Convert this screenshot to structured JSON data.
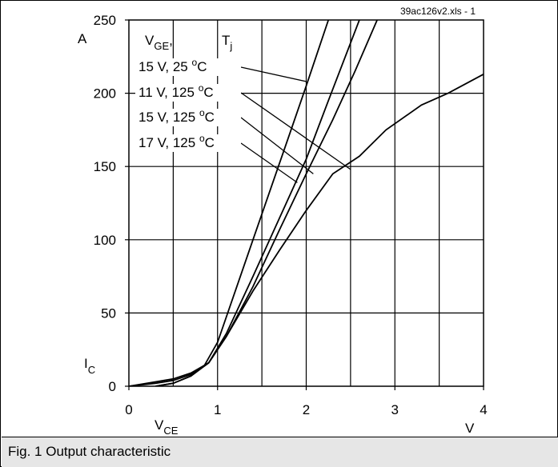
{
  "chart_data": {
    "type": "line",
    "source_label": "39ac126v2.xls - 1",
    "xlabel": {
      "main": "V",
      "sub": "CE"
    },
    "ylabel": {
      "main": "I",
      "sub": "C"
    },
    "x_unit": "V",
    "y_unit": "A",
    "xlim": [
      0,
      4
    ],
    "ylim": [
      0,
      250
    ],
    "x_ticks": [
      0,
      1,
      2,
      3,
      4
    ],
    "y_ticks": [
      0,
      50,
      100,
      150,
      200,
      250
    ],
    "x_gridlines": [
      0.5,
      1,
      1.5,
      2,
      2.5,
      3,
      3.5
    ],
    "y_gridlines": [
      50,
      100,
      150,
      200
    ],
    "legend_header": {
      "vge_main": "V",
      "vge_sub": "GE",
      "vge_suffix": ",",
      "tj_main": "T",
      "tj_sub": "j"
    },
    "series": [
      {
        "name": "15 V,  25 °C",
        "label_volts": "15 V,  25",
        "label_unit": "C",
        "leader_end": [
          2.0,
          208
        ],
        "points": [
          [
            0,
            0
          ],
          [
            0.3,
            2
          ],
          [
            0.5,
            4
          ],
          [
            0.7,
            8
          ],
          [
            0.85,
            14
          ],
          [
            1.0,
            30
          ],
          [
            1.2,
            65
          ],
          [
            1.4,
            100
          ],
          [
            1.6,
            135
          ],
          [
            1.8,
            170
          ],
          [
            2.0,
            205
          ],
          [
            2.25,
            250
          ]
        ]
      },
      {
        "name": "11 V, 125 °C",
        "label_volts": "11 V, 125",
        "label_unit": "C",
        "leader_end": [
          2.5,
          148
        ],
        "points": [
          [
            0,
            0
          ],
          [
            0.3,
            3
          ],
          [
            0.5,
            5
          ],
          [
            0.7,
            9
          ],
          [
            0.9,
            16
          ],
          [
            1.1,
            34
          ],
          [
            1.4,
            65
          ],
          [
            1.7,
            93
          ],
          [
            2.0,
            120
          ],
          [
            2.3,
            145
          ],
          [
            2.6,
            157
          ],
          [
            2.9,
            175
          ],
          [
            3.3,
            192
          ],
          [
            3.6,
            200
          ],
          [
            4.0,
            213
          ]
        ]
      },
      {
        "name": "15 V, 125 °C",
        "label_volts": "15 V, 125",
        "label_unit": "C",
        "leader_end": [
          2.08,
          145
        ],
        "points": [
          [
            0.3,
            0
          ],
          [
            0.5,
            2
          ],
          [
            0.7,
            7
          ],
          [
            0.9,
            16
          ],
          [
            1.1,
            34
          ],
          [
            1.4,
            68
          ],
          [
            1.7,
            107
          ],
          [
            2.0,
            145
          ],
          [
            2.3,
            182
          ],
          [
            2.55,
            215
          ],
          [
            2.8,
            250
          ]
        ]
      },
      {
        "name": "17 V, 125 °C",
        "label_volts": "17 V, 125",
        "label_unit": "C",
        "leader_end": [
          1.9,
          139
        ],
        "points": [
          [
            0.3,
            0
          ],
          [
            0.5,
            2
          ],
          [
            0.7,
            7
          ],
          [
            0.9,
            16
          ],
          [
            1.1,
            36
          ],
          [
            1.4,
            75
          ],
          [
            1.7,
            115
          ],
          [
            2.0,
            155
          ],
          [
            2.25,
            195
          ],
          [
            2.6,
            250
          ]
        ]
      }
    ]
  },
  "caption": "Fig. 1 Output characteristic"
}
